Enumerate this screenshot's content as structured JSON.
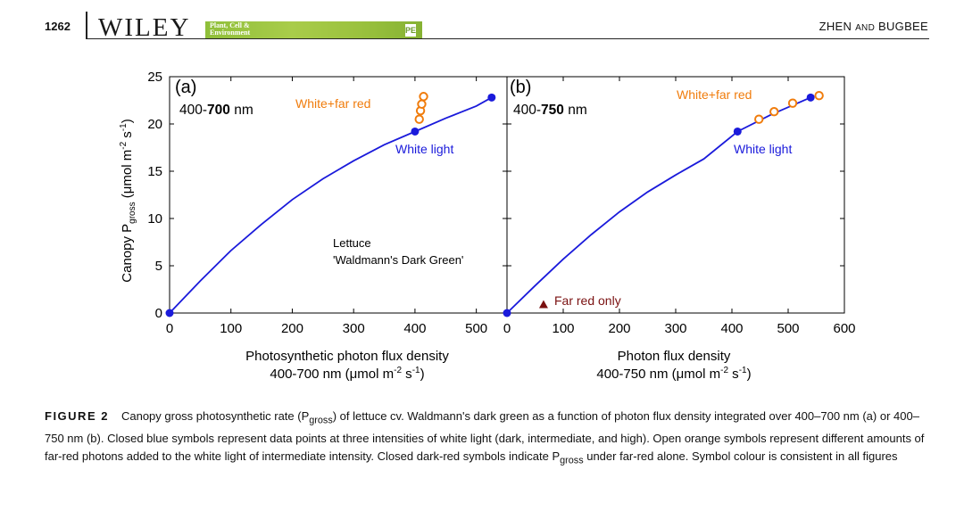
{
  "header": {
    "page_number": "1262",
    "publisher": "WILEY",
    "journal_line1": "Plant, Cell &",
    "journal_line2": "Environment",
    "badge": "PE",
    "authors_part1": "ZHEN ",
    "authors_and": "AND",
    "authors_part2": " BUGBEE"
  },
  "figure": {
    "panel_a": {
      "label": "(a)",
      "range_prefix": "400-",
      "range_bold": "700",
      "range_suffix": " nm",
      "annot_wfr": "White+far red",
      "annot_white": "White light",
      "annot_species": "Lettuce",
      "annot_cultivar": "'Waldmann's Dark Green'",
      "xlabel_line1": "Photosynthetic photon flux density",
      "xlabel_line2": "400-700 nm (μmol m",
      "xlabel_exp1": "-2",
      "xlabel_s": " s",
      "xlabel_exp2": "-1",
      "xlabel_close": ")"
    },
    "panel_b": {
      "label": "(b)",
      "range_prefix": "400-",
      "range_bold": "750",
      "range_suffix": " nm",
      "annot_wfr": "White+far red",
      "annot_white": "White light",
      "annot_fr": "Far red only",
      "xlabel_line1": "Photon flux density",
      "xlabel_line2": "400-750 nm (μmol m",
      "xlabel_exp1": "-2",
      "xlabel_s": " s",
      "xlabel_exp2": "-1",
      "xlabel_close": ")"
    },
    "ylabel": {
      "pre": "Canopy P",
      "sub": "gross",
      "unit": " (μmol m",
      "exp1": "-2",
      "s": " s",
      "exp2": "-1",
      "close": ")"
    }
  },
  "colors": {
    "white_light": "#1a1adb",
    "white_far_red": "#f07c0c",
    "far_red": "#7a1010"
  },
  "chart_data": [
    {
      "type": "scatter",
      "panel": "(a)",
      "xlim": [
        0,
        550
      ],
      "ylim": [
        0,
        25
      ],
      "xticks": [
        0,
        100,
        200,
        300,
        400,
        500
      ],
      "yticks": [
        0,
        5,
        10,
        15,
        20,
        25
      ],
      "series": [
        {
          "name": "White light",
          "x": [
            0,
            400,
            525
          ],
          "y": [
            0,
            19.2,
            22.8
          ]
        },
        {
          "name": "White+far red",
          "x": [
            407,
            409,
            411,
            414
          ],
          "y": [
            20.5,
            21.4,
            22.1,
            22.9
          ]
        }
      ],
      "fit": {
        "x": [
          0,
          50,
          100,
          150,
          200,
          250,
          300,
          350,
          400,
          450,
          500,
          525
        ],
        "y": [
          0,
          3.4,
          6.6,
          9.4,
          12.0,
          14.2,
          16.1,
          17.8,
          19.2,
          20.6,
          21.9,
          22.8
        ]
      }
    },
    {
      "type": "scatter",
      "panel": "(b)",
      "xlim": [
        0,
        600
      ],
      "ylim": [
        0,
        25
      ],
      "xticks": [
        0,
        100,
        200,
        300,
        400,
        500,
        600
      ],
      "yticks": [
        0,
        5,
        10,
        15,
        20,
        25
      ],
      "series": [
        {
          "name": "White light",
          "x": [
            0,
            410,
            540
          ],
          "y": [
            0,
            19.2,
            22.8
          ]
        },
        {
          "name": "White+far red",
          "x": [
            448,
            475,
            508,
            555
          ],
          "y": [
            20.5,
            21.3,
            22.2,
            23.0
          ]
        },
        {
          "name": "Far red only",
          "x": [
            65
          ],
          "y": [
            0.8
          ]
        }
      ],
      "fit": {
        "x": [
          0,
          50,
          100,
          150,
          200,
          250,
          300,
          350,
          410,
          470,
          540
        ],
        "y": [
          0,
          2.9,
          5.7,
          8.3,
          10.7,
          12.8,
          14.6,
          16.3,
          19.2,
          21.0,
          22.8
        ]
      }
    }
  ],
  "caption": {
    "label": "FIGURE 2",
    "t1": "Canopy gross photosynthetic rate (P",
    "sub1": "gross",
    "t2": ") of lettuce cv. Waldmann's dark green as a function of photon flux density integrated over 400–700 nm (a) or 400–750 nm (b). Closed blue symbols represent data points at three intensities of white light (dark, intermediate, and high). Open orange symbols represent different amounts of far-red photons added to the white light of intermediate intensity. Closed dark-red symbols indicate P",
    "sub2": "gross",
    "t3": " under far-red alone. Symbol colour is consistent in all figures"
  }
}
